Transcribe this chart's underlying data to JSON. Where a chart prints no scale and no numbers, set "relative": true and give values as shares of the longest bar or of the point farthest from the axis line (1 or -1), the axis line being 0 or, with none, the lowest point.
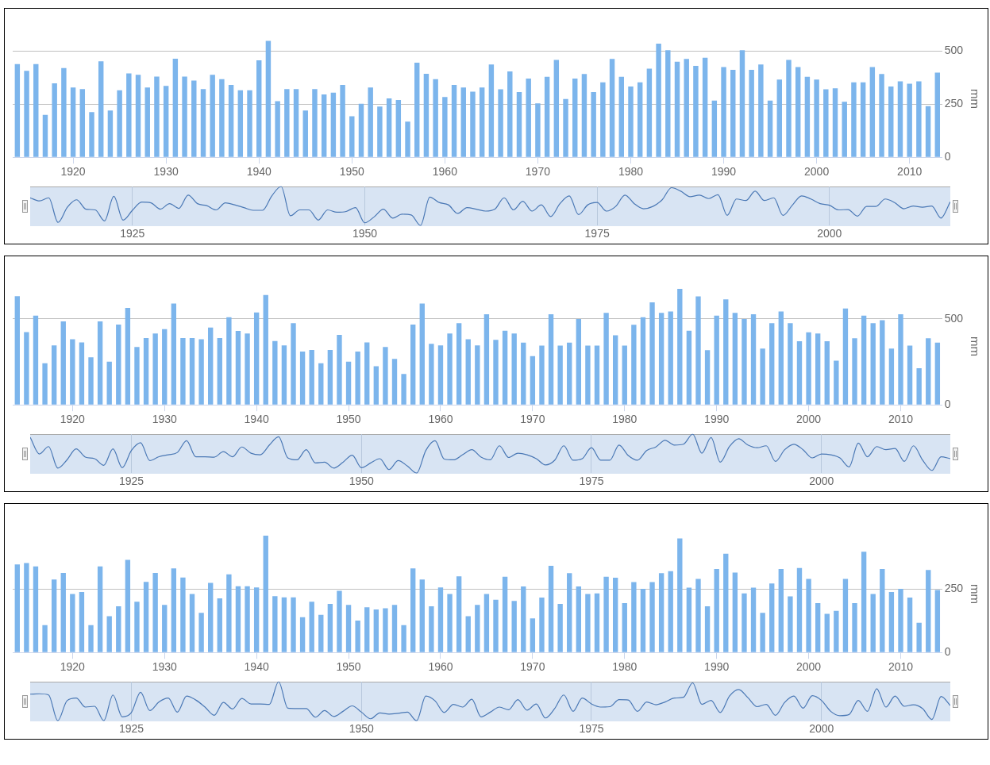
{
  "chart_data": [
    {
      "type": "bar",
      "ylabel": "mm",
      "color": "#7cb5ec",
      "ylim": [
        0,
        550
      ],
      "yticks": [
        0,
        250,
        500
      ],
      "grid": "y",
      "categories": [
        null,
        null,
        null,
        null,
        null,
        null,
        "1920",
        null,
        null,
        null,
        null,
        null,
        null,
        null,
        null,
        null,
        "1930",
        null,
        null,
        null,
        null,
        null,
        null,
        null,
        null,
        null,
        "1940",
        null,
        null,
        null,
        null,
        null,
        null,
        null,
        null,
        null,
        "1950",
        null,
        null,
        null,
        null,
        null,
        null,
        null,
        null,
        null,
        "1960",
        null,
        null,
        null,
        null,
        null,
        null,
        null,
        null,
        null,
        "1970",
        null,
        null,
        null,
        null,
        null,
        null,
        null,
        null,
        null,
        "1980",
        null,
        null,
        null,
        null,
        null,
        null,
        null,
        null,
        null,
        "1990",
        null,
        null,
        null,
        null,
        null,
        null,
        null,
        null,
        null,
        "2000",
        null,
        null,
        null,
        null,
        null,
        null,
        null,
        null,
        null,
        "2010",
        null,
        null,
        null
      ],
      "values": [
        439,
        407,
        439,
        200,
        348,
        420,
        329,
        321,
        213,
        452,
        220,
        316,
        395,
        388,
        329,
        380,
        336,
        464,
        380,
        361,
        321,
        388,
        368,
        341,
        316,
        316,
        457,
        548,
        264,
        321,
        321,
        220,
        321,
        296,
        304,
        341,
        193,
        252,
        329,
        239,
        277,
        270,
        168,
        445,
        393,
        368,
        284,
        341,
        329,
        309,
        329,
        437,
        320,
        404,
        307,
        371,
        254,
        379,
        458,
        274,
        371,
        392,
        307,
        353,
        463,
        379,
        333,
        353,
        417,
        535,
        504,
        450,
        463,
        430,
        469,
        267,
        425,
        412,
        504,
        412,
        437,
        267,
        366,
        458,
        425,
        379,
        366,
        320,
        325,
        261,
        353,
        353,
        425,
        392,
        333,
        358,
        346,
        358,
        241,
        399
      ]
    },
    {
      "type": "line",
      "relative": true,
      "color": "#4a78b5",
      "xlim": [
        1914,
        2013
      ],
      "xticks": [
        1925,
        1950,
        1975,
        2000
      ],
      "grid": "x",
      "x": [
        1914,
        1915,
        1916,
        1917,
        1918,
        1919,
        1920,
        1921,
        1922,
        1923,
        1924,
        1925,
        1926,
        1927,
        1928,
        1929,
        1930,
        1931,
        1932,
        1933,
        1934,
        1935,
        1936,
        1937,
        1938,
        1939,
        1940,
        1941,
        1942,
        1943,
        1944,
        1945,
        1946,
        1947,
        1948,
        1949,
        1950,
        1951,
        1952,
        1953,
        1954,
        1955,
        1956,
        1957,
        1958,
        1959,
        1960,
        1961,
        1962,
        1963,
        1964,
        1965,
        1966,
        1967,
        1968,
        1969,
        1970,
        1971,
        1972,
        1973,
        1974,
        1975,
        1976,
        1977,
        1978,
        1979,
        1980,
        1981,
        1982,
        1983,
        1984,
        1985,
        1986,
        1987,
        1988,
        1989,
        1990,
        1991,
        1992,
        1993,
        1994,
        1995,
        1996,
        1997,
        1998,
        1999,
        2000,
        2001,
        2002,
        2003,
        2004,
        2005,
        2006,
        2007,
        2008,
        2009,
        2010,
        2011,
        2012,
        2013
      ],
      "values": [
        0.71,
        0.63,
        0.71,
        0.08,
        0.47,
        0.66,
        0.42,
        0.4,
        0.12,
        0.75,
        0.14,
        0.39,
        0.6,
        0.58,
        0.42,
        0.56,
        0.44,
        0.78,
        0.56,
        0.51,
        0.4,
        0.58,
        0.53,
        0.46,
        0.39,
        0.39,
        0.76,
        1,
        0.25,
        0.4,
        0.4,
        0.14,
        0.4,
        0.34,
        0.36,
        0.46,
        0.07,
        0.22,
        0.42,
        0.19,
        0.29,
        0.27,
        0,
        0.73,
        0.59,
        0.53,
        0.31,
        0.46,
        0.42,
        0.37,
        0.42,
        0.71,
        0.4,
        0.62,
        0.37,
        0.53,
        0.23,
        0.56,
        0.76,
        0.28,
        0.53,
        0.59,
        0.37,
        0.49,
        0.78,
        0.56,
        0.43,
        0.49,
        0.66,
        0.97,
        0.88,
        0.74,
        0.78,
        0.69,
        0.79,
        0.26,
        0.68,
        0.64,
        0.88,
        0.64,
        0.71,
        0.26,
        0.52,
        0.76,
        0.68,
        0.56,
        0.52,
        0.4,
        0.41,
        0.24,
        0.49,
        0.49,
        0.68,
        0.59,
        0.43,
        0.5,
        0.47,
        0.5,
        0.19,
        0.61
      ]
    },
    {
      "type": "bar",
      "ylabel": "mm",
      "color": "#7cb5ec",
      "ylim": [
        0,
        680
      ],
      "yticks": [
        0,
        500
      ],
      "grid": "y",
      "categories": [
        null,
        null,
        null,
        null,
        null,
        null,
        "1920",
        null,
        null,
        null,
        null,
        null,
        null,
        null,
        null,
        null,
        "1930",
        null,
        null,
        null,
        null,
        null,
        null,
        null,
        null,
        null,
        "1940",
        null,
        null,
        null,
        null,
        null,
        null,
        null,
        null,
        null,
        "1950",
        null,
        null,
        null,
        null,
        null,
        null,
        null,
        null,
        null,
        "1960",
        null,
        null,
        null,
        null,
        null,
        null,
        null,
        null,
        null,
        "1970",
        null,
        null,
        null,
        null,
        null,
        null,
        null,
        null,
        null,
        "1980",
        null,
        null,
        null,
        null,
        null,
        null,
        null,
        null,
        null,
        "1990",
        null,
        null,
        null,
        null,
        null,
        null,
        null,
        null,
        null,
        "2000",
        null,
        null,
        null,
        null,
        null,
        null,
        null,
        null,
        null,
        "2010",
        null,
        null,
        null,
        null
      ],
      "values": [
        633,
        424,
        519,
        242,
        346,
        486,
        382,
        363,
        277,
        486,
        251,
        467,
        564,
        337,
        389,
        415,
        441,
        590,
        389,
        389,
        382,
        450,
        389,
        510,
        431,
        415,
        538,
        640,
        372,
        346,
        476,
        310,
        320,
        242,
        320,
        408,
        251,
        310,
        363,
        225,
        337,
        268,
        180,
        467,
        590,
        356,
        346,
        415,
        476,
        382,
        346,
        527,
        379,
        432,
        415,
        362,
        284,
        345,
        527,
        345,
        362,
        500,
        345,
        345,
        536,
        405,
        345,
        466,
        510,
        597,
        536,
        544,
        675,
        432,
        631,
        318,
        519,
        614,
        536,
        500,
        527,
        328,
        476,
        544,
        476,
        371,
        422,
        415,
        371,
        257,
        561,
        388,
        519,
        476,
        493,
        328,
        527,
        345,
        214,
        388,
        362
      ]
    },
    {
      "type": "line",
      "relative": true,
      "color": "#4a78b5",
      "xlim": [
        1914,
        2014
      ],
      "xticks": [
        1925,
        1950,
        1975,
        2000
      ],
      "grid": "x",
      "x": [
        1914,
        1915,
        1916,
        1917,
        1918,
        1919,
        1920,
        1921,
        1922,
        1923,
        1924,
        1925,
        1926,
        1927,
        1928,
        1929,
        1930,
        1931,
        1932,
        1933,
        1934,
        1935,
        1936,
        1937,
        1938,
        1939,
        1940,
        1941,
        1942,
        1943,
        1944,
        1945,
        1946,
        1947,
        1948,
        1949,
        1950,
        1951,
        1952,
        1953,
        1954,
        1955,
        1956,
        1957,
        1958,
        1959,
        1960,
        1961,
        1962,
        1963,
        1964,
        1965,
        1966,
        1967,
        1968,
        1969,
        1970,
        1971,
        1972,
        1973,
        1974,
        1975,
        1976,
        1977,
        1978,
        1979,
        1980,
        1981,
        1982,
        1983,
        1984,
        1985,
        1986,
        1987,
        1988,
        1989,
        1990,
        1991,
        1992,
        1993,
        1994,
        1995,
        1996,
        1997,
        1998,
        1999,
        2000,
        2001,
        2002,
        2003,
        2004,
        2005,
        2006,
        2007,
        2008,
        2009,
        2010,
        2011,
        2012,
        2013,
        2014
      ],
      "values": [
        0.92,
        0.49,
        0.68,
        0.13,
        0.34,
        0.62,
        0.41,
        0.37,
        0.2,
        0.62,
        0.14,
        0.58,
        0.78,
        0.32,
        0.42,
        0.47,
        0.53,
        0.83,
        0.42,
        0.42,
        0.41,
        0.55,
        0.42,
        0.67,
        0.51,
        0.47,
        0.72,
        0.93,
        0.39,
        0.34,
        0.6,
        0.26,
        0.28,
        0.13,
        0.28,
        0.46,
        0.14,
        0.26,
        0.37,
        0.09,
        0.32,
        0.18,
        0,
        0.58,
        0.83,
        0.36,
        0.34,
        0.47,
        0.6,
        0.41,
        0.34,
        0.7,
        0.4,
        0.51,
        0.47,
        0.37,
        0.21,
        0.33,
        0.7,
        0.33,
        0.37,
        0.65,
        0.33,
        0.33,
        0.72,
        0.45,
        0.33,
        0.58,
        0.67,
        0.84,
        0.72,
        0.74,
        1,
        0.51,
        0.91,
        0.28,
        0.68,
        0.88,
        0.72,
        0.65,
        0.7,
        0.3,
        0.6,
        0.74,
        0.6,
        0.39,
        0.49,
        0.47,
        0.39,
        0.16,
        0.77,
        0.42,
        0.68,
        0.6,
        0.63,
        0.3,
        0.7,
        0.33,
        0.07,
        0.42,
        0.37
      ]
    },
    {
      "type": "bar",
      "ylabel": "mm",
      "color": "#7cb5ec",
      "ylim": [
        0,
        460
      ],
      "yticks": [
        0,
        250
      ],
      "grid": "y",
      "categories": [
        null,
        null,
        null,
        null,
        null,
        null,
        "1920",
        null,
        null,
        null,
        null,
        null,
        null,
        null,
        null,
        null,
        "1930",
        null,
        null,
        null,
        null,
        null,
        null,
        null,
        null,
        null,
        "1940",
        null,
        null,
        null,
        null,
        null,
        null,
        null,
        null,
        null,
        "1950",
        null,
        null,
        null,
        null,
        null,
        null,
        null,
        null,
        null,
        "1960",
        null,
        null,
        null,
        null,
        null,
        null,
        null,
        null,
        null,
        "1970",
        null,
        null,
        null,
        null,
        null,
        null,
        null,
        null,
        null,
        "1980",
        null,
        null,
        null,
        null,
        null,
        null,
        null,
        null,
        null,
        "1990",
        null,
        null,
        null,
        null,
        null,
        null,
        null,
        null,
        null,
        "2000",
        null,
        null,
        null,
        null,
        null,
        null,
        null,
        null,
        null,
        "2010",
        null,
        null,
        null,
        null
      ],
      "values": [
        347,
        352,
        339,
        108,
        287,
        313,
        230,
        238,
        108,
        339,
        143,
        182,
        365,
        200,
        278,
        313,
        187,
        331,
        295,
        230,
        156,
        274,
        213,
        308,
        261,
        261,
        256,
        460,
        222,
        217,
        217,
        139,
        200,
        148,
        191,
        243,
        187,
        126,
        178,
        169,
        174,
        187,
        108,
        331,
        287,
        182,
        256,
        230,
        300,
        143,
        187,
        230,
        208,
        298,
        203,
        260,
        134,
        216,
        341,
        191,
        312,
        260,
        230,
        233,
        298,
        294,
        194,
        277,
        251,
        277,
        312,
        320,
        449,
        255,
        290,
        182,
        329,
        389,
        315,
        233,
        255,
        156,
        272,
        329,
        221,
        333,
        290,
        194,
        152,
        164,
        290,
        194,
        397,
        230,
        329,
        238,
        251,
        216,
        117,
        325,
        246
      ]
    },
    {
      "type": "line",
      "relative": true,
      "color": "#4a78b5",
      "xlim": [
        1914,
        2014
      ],
      "xticks": [
        1925,
        1950,
        1975,
        2000
      ],
      "grid": "x",
      "x": [
        1914,
        1915,
        1916,
        1917,
        1918,
        1919,
        1920,
        1921,
        1922,
        1923,
        1924,
        1925,
        1926,
        1927,
        1928,
        1929,
        1930,
        1931,
        1932,
        1933,
        1934,
        1935,
        1936,
        1937,
        1938,
        1939,
        1940,
        1941,
        1942,
        1943,
        1944,
        1945,
        1946,
        1947,
        1948,
        1949,
        1950,
        1951,
        1952,
        1953,
        1954,
        1955,
        1956,
        1957,
        1958,
        1959,
        1960,
        1961,
        1962,
        1963,
        1964,
        1965,
        1966,
        1967,
        1968,
        1969,
        1970,
        1971,
        1972,
        1973,
        1974,
        1975,
        1976,
        1977,
        1978,
        1979,
        1980,
        1981,
        1982,
        1983,
        1984,
        1985,
        1986,
        1987,
        1988,
        1989,
        1990,
        1991,
        1992,
        1993,
        1994,
        1995,
        1996,
        1997,
        1998,
        1999,
        2000,
        2001,
        2002,
        2003,
        2004,
        2005,
        2006,
        2007,
        2008,
        2009,
        2010,
        2011,
        2012,
        2013,
        2014
      ],
      "values": [
        0.68,
        0.69,
        0.66,
        0,
        0.51,
        0.58,
        0.35,
        0.37,
        0,
        0.66,
        0.1,
        0.21,
        0.73,
        0.26,
        0.48,
        0.58,
        0.22,
        0.63,
        0.53,
        0.35,
        0.14,
        0.47,
        0.3,
        0.57,
        0.43,
        0.43,
        0.42,
        1,
        0.32,
        0.31,
        0.31,
        0.09,
        0.26,
        0.11,
        0.24,
        0.38,
        0.22,
        0.05,
        0.2,
        0.17,
        0.19,
        0.22,
        0,
        0.63,
        0.51,
        0.21,
        0.42,
        0.35,
        0.55,
        0.1,
        0.22,
        0.35,
        0.28,
        0.54,
        0.27,
        0.43,
        0.07,
        0.31,
        0.66,
        0.24,
        0.58,
        0.43,
        0.35,
        0.36,
        0.54,
        0.53,
        0.24,
        0.48,
        0.41,
        0.48,
        0.58,
        0.6,
        0.97,
        0.42,
        0.52,
        0.21,
        0.63,
        0.8,
        0.59,
        0.36,
        0.42,
        0.14,
        0.47,
        0.63,
        0.32,
        0.64,
        0.52,
        0.24,
        0.13,
        0.16,
        0.52,
        0.24,
        0.82,
        0.35,
        0.63,
        0.37,
        0.41,
        0.31,
        0.03,
        0.62,
        0.39
      ]
    }
  ]
}
